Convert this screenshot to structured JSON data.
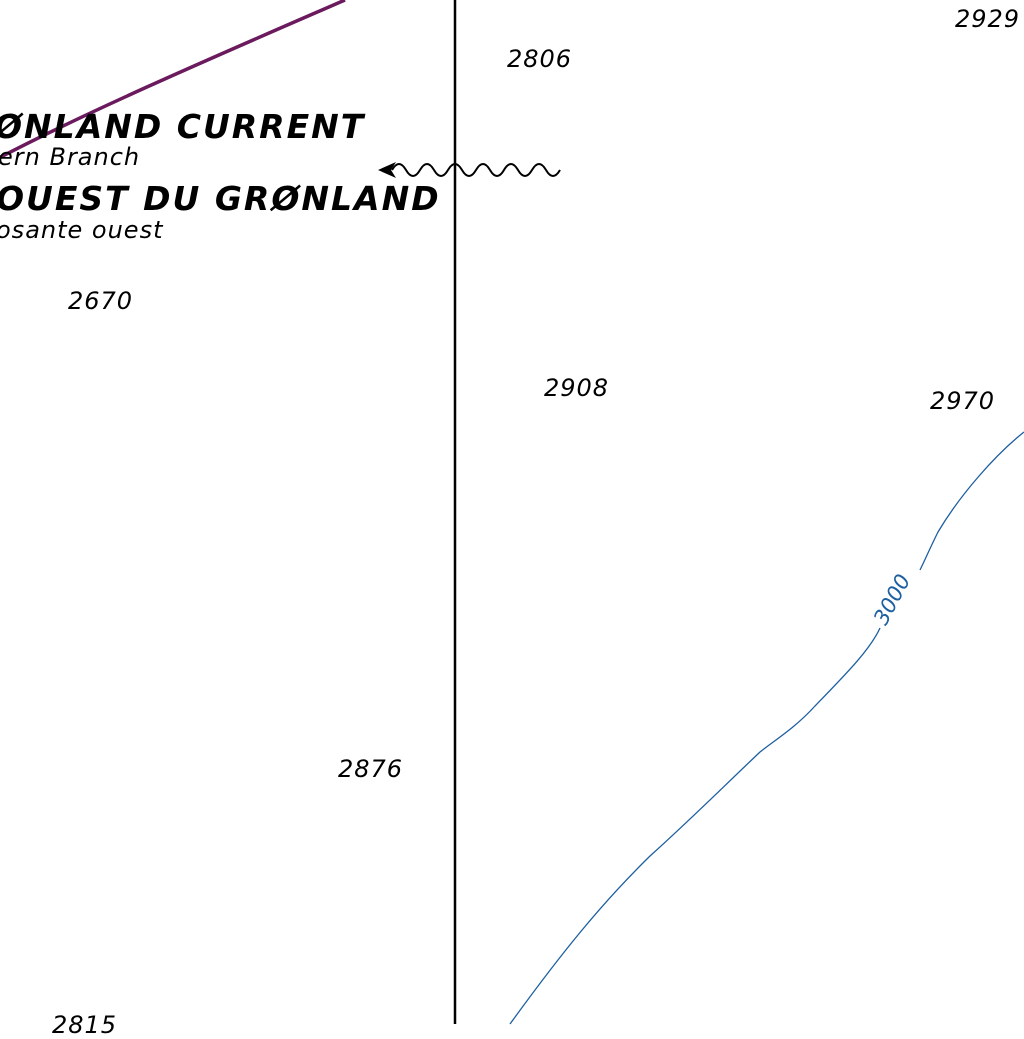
{
  "map": {
    "colors": {
      "current_line": "#6b1a5e",
      "depth_contour": "#1d5fa0",
      "meridian": "#000000",
      "text": "#000000"
    },
    "current_labels": {
      "english_title": "ØNLAND CURRENT",
      "english_branch": "ern Branch",
      "french_title": "OUEST DU GRØNLAND",
      "french_branch": "osante ouest"
    },
    "soundings": [
      "2929",
      "2806",
      "2670",
      "2908",
      "2970",
      "2876",
      "2815"
    ],
    "contour_label": "3000",
    "symbols": [
      "current-arrow-icon"
    ]
  }
}
